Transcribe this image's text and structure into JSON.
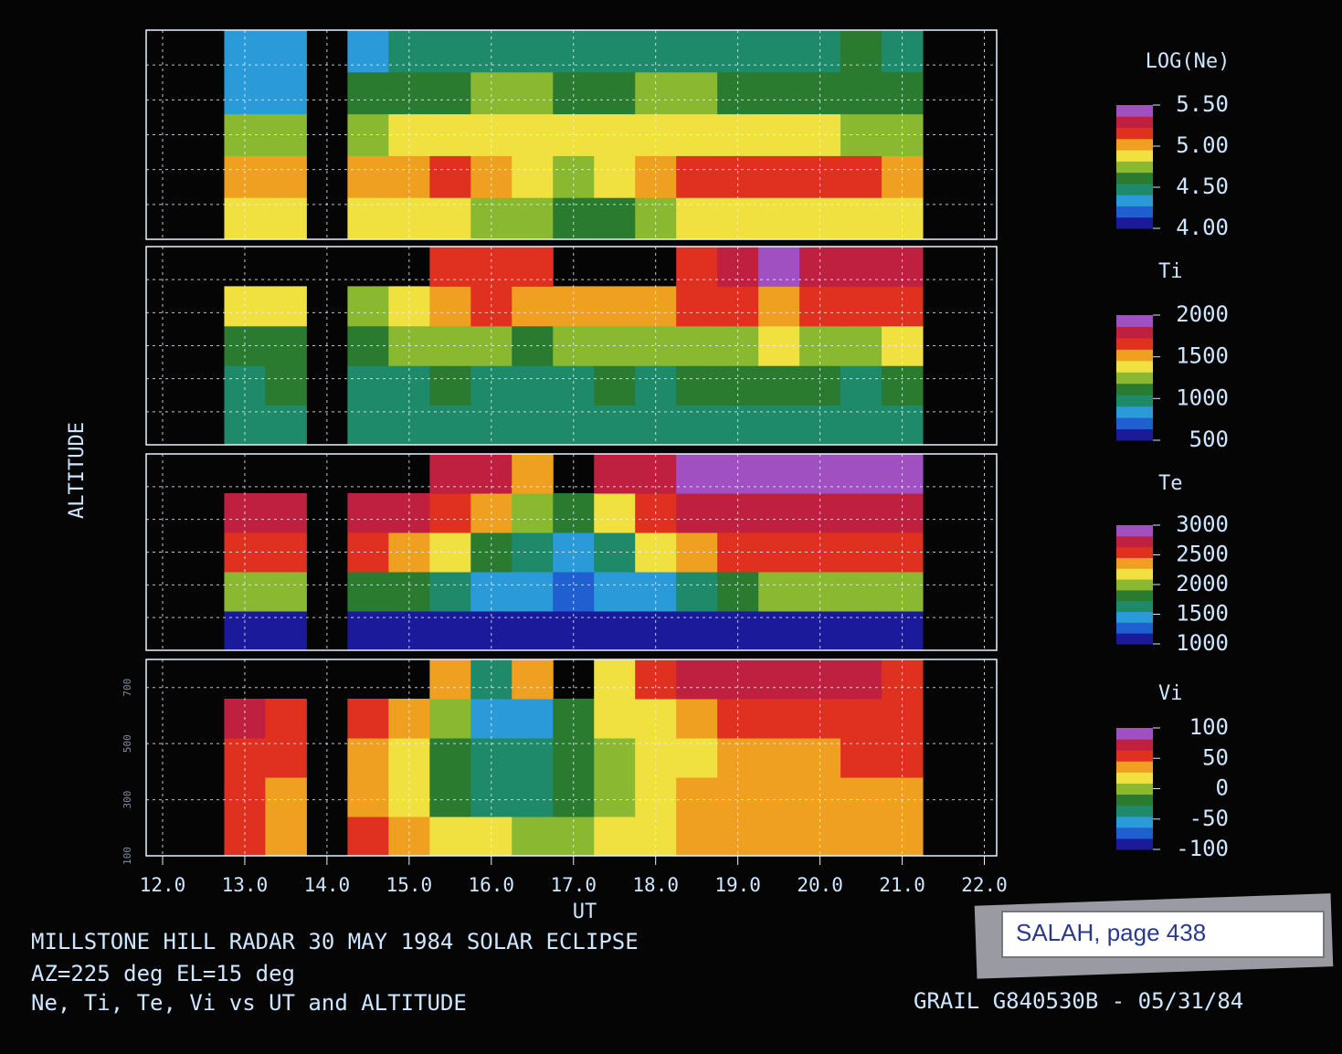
{
  "ylabel": "ALTITUDE",
  "caption": [
    "MILLSTONE HILL RADAR  30 MAY 1984  SOLAR ECLIPSE",
    "AZ=225 deg   EL=15 deg",
    "Ne, Ti, Te, Vi vs UT and ALTITUDE"
  ],
  "stamp": "GRAIL G840530B - 05/31/84",
  "note": "SALAH, page 438",
  "colormap": [
    "#1a1a9a",
    "#1f5fd0",
    "#2a9ad8",
    "#1f8a6a",
    "#2a7a30",
    "#8ab830",
    "#f0e040",
    "#f0a020",
    "#e03020",
    "#c02040",
    "#a050c0"
  ],
  "chart_data": [
    {
      "type": "heatmap",
      "colorbar_title": "LOG(Ne)",
      "clim": [
        4.0,
        5.5
      ],
      "cticks": [
        {
          "value": 4.0,
          "label": "4.00"
        },
        {
          "value": 4.5,
          "label": "4.50"
        },
        {
          "value": 5.0,
          "label": "5.00"
        },
        {
          "value": 5.5,
          "label": "5.50"
        }
      ],
      "xlim": [
        11.8,
        22.15
      ],
      "ylim": [
        100,
        800
      ],
      "x": [
        13.0,
        13.5,
        14.5,
        15.0,
        15.5,
        16.0,
        16.5,
        17.0,
        17.5,
        18.0,
        18.5,
        19.0,
        19.5,
        20.0,
        20.5,
        21.0
      ],
      "y": [
        170,
        310,
        450,
        590,
        730
      ],
      "z": [
        [
          4.95,
          4.95,
          4.9,
          4.9,
          4.85,
          4.8,
          4.7,
          4.55,
          4.65,
          4.8,
          4.9,
          4.95,
          4.95,
          4.95,
          4.95,
          4.95
        ],
        [
          5.05,
          5.05,
          5.0,
          5.05,
          5.1,
          5.05,
          4.9,
          4.75,
          4.9,
          5.05,
          5.15,
          5.15,
          5.1,
          5.1,
          5.1,
          5.05
        ],
        [
          4.7,
          4.7,
          4.8,
          4.85,
          4.9,
          4.95,
          4.95,
          4.9,
          4.9,
          4.95,
          4.9,
          4.85,
          4.85,
          4.85,
          4.8,
          4.8
        ],
        [
          4.4,
          4.4,
          4.55,
          4.6,
          4.65,
          4.7,
          4.7,
          4.65,
          4.65,
          4.7,
          4.7,
          4.65,
          4.6,
          4.6,
          4.6,
          4.6
        ],
        [
          4.3,
          4.3,
          4.4,
          4.45,
          4.45,
          4.5,
          4.5,
          4.45,
          4.5,
          4.5,
          4.5,
          4.5,
          4.5,
          4.5,
          4.55,
          4.5
        ]
      ]
    },
    {
      "type": "heatmap",
      "colorbar_title": "Ti",
      "clim": [
        500,
        2000
      ],
      "cticks": [
        500,
        1000,
        1500,
        2000
      ],
      "xlim": [
        11.8,
        22.15
      ],
      "ylim": [
        100,
        800
      ],
      "x": [
        13.0,
        13.5,
        14.5,
        15.0,
        15.5,
        16.0,
        16.5,
        17.0,
        17.5,
        18.0,
        18.5,
        19.0,
        19.5,
        20.0,
        20.5,
        21.0
      ],
      "y": [
        170,
        310,
        450,
        590,
        730
      ],
      "z": [
        [
          950,
          950,
          950,
          950,
          950,
          950,
          950,
          950,
          950,
          950,
          950,
          950,
          950,
          950,
          950,
          950
        ],
        [
          1000,
          1050,
          1000,
          1000,
          1050,
          1000,
          1000,
          1000,
          1050,
          1000,
          1050,
          1050,
          1050,
          1050,
          1000,
          1050
        ],
        [
          1100,
          1150,
          1100,
          1200,
          1250,
          1250,
          1150,
          1200,
          1250,
          1250,
          1300,
          1300,
          1350,
          1300,
          1300,
          1350
        ],
        [
          1450,
          1350,
          1300,
          1450,
          1550,
          1600,
          1500,
          1550,
          1500,
          1550,
          1600,
          1650,
          1550,
          1600,
          1700,
          1650
        ],
        [
          null,
          null,
          null,
          null,
          1600,
          1650,
          1700,
          null,
          null,
          null,
          1700,
          1800,
          1900,
          1750,
          1800,
          1750
        ]
      ]
    },
    {
      "type": "heatmap",
      "colorbar_title": "Te",
      "clim": [
        1000,
        3000
      ],
      "cticks": [
        1000,
        1500,
        2000,
        2500,
        3000
      ],
      "xlim": [
        11.8,
        22.15
      ],
      "ylim": [
        100,
        800
      ],
      "x": [
        13.0,
        13.5,
        14.5,
        15.0,
        15.5,
        16.0,
        16.5,
        17.0,
        17.5,
        18.0,
        18.5,
        19.0,
        19.5,
        20.0,
        20.5,
        21.0
      ],
      "y": [
        170,
        310,
        450,
        590,
        730
      ],
      "z": [
        [
          1100,
          1100,
          1100,
          1100,
          1100,
          1100,
          1100,
          1100,
          1100,
          1100,
          1100,
          1100,
          1100,
          1100,
          1100,
          1100
        ],
        [
          2000,
          2000,
          1900,
          1800,
          1600,
          1500,
          1400,
          1350,
          1400,
          1500,
          1700,
          1900,
          2000,
          2000,
          2000,
          2000
        ],
        [
          2600,
          2600,
          2500,
          2400,
          2200,
          1900,
          1600,
          1500,
          1700,
          2100,
          2400,
          2500,
          2600,
          2600,
          2600,
          2600
        ],
        [
          2800,
          2800,
          2800,
          2700,
          2600,
          2300,
          2000,
          1900,
          2200,
          2600,
          2700,
          2800,
          2800,
          2800,
          2800,
          2800
        ],
        [
          null,
          null,
          null,
          null,
          2800,
          2700,
          2400,
          null,
          2700,
          2800,
          2900,
          2950,
          2950,
          2900,
          2900,
          2900
        ]
      ]
    },
    {
      "type": "heatmap",
      "colorbar_title": "Vi",
      "clim": [
        -100,
        100
      ],
      "cticks": [
        -100,
        -50,
        0,
        50,
        100
      ],
      "xlim": [
        11.8,
        22.15
      ],
      "ylim": [
        100,
        800
      ],
      "xlabel": "UT",
      "xticks": [
        {
          "value": 12,
          "label": "12.0"
        },
        {
          "value": 13,
          "label": "13.0"
        },
        {
          "value": 14,
          "label": "14.0"
        },
        {
          "value": 15,
          "label": "15.0"
        },
        {
          "value": 16,
          "label": "16.0"
        },
        {
          "value": 17,
          "label": "17.0"
        },
        {
          "value": 18,
          "label": "18.0"
        },
        {
          "value": 19,
          "label": "19.0"
        },
        {
          "value": 20,
          "label": "20.0"
        },
        {
          "value": 21,
          "label": "21.0"
        },
        {
          "value": 22,
          "label": "22.0"
        }
      ],
      "yticks": [
        100,
        300,
        500,
        700
      ],
      "x": [
        13.0,
        13.5,
        14.5,
        15.0,
        15.5,
        16.0,
        16.5,
        17.0,
        17.5,
        18.0,
        18.5,
        19.0,
        19.5,
        20.0,
        20.5,
        21.0
      ],
      "y": [
        170,
        310,
        450,
        590,
        730
      ],
      "z": [
        [
          60,
          40,
          50,
          30,
          20,
          10,
          0,
          0,
          10,
          20,
          30,
          30,
          30,
          40,
          40,
          40
        ],
        [
          50,
          40,
          30,
          10,
          -20,
          -30,
          -30,
          -20,
          0,
          20,
          30,
          30,
          30,
          30,
          40,
          40
        ],
        [
          50,
          60,
          40,
          20,
          -10,
          -30,
          -40,
          -20,
          0,
          10,
          20,
          30,
          40,
          40,
          50,
          50
        ],
        [
          70,
          60,
          50,
          30,
          0,
          -50,
          -60,
          -10,
          10,
          20,
          40,
          50,
          60,
          60,
          60,
          50
        ],
        [
          null,
          null,
          null,
          null,
          30,
          -30,
          40,
          null,
          20,
          60,
          70,
          70,
          80,
          70,
          70,
          60
        ]
      ]
    }
  ]
}
